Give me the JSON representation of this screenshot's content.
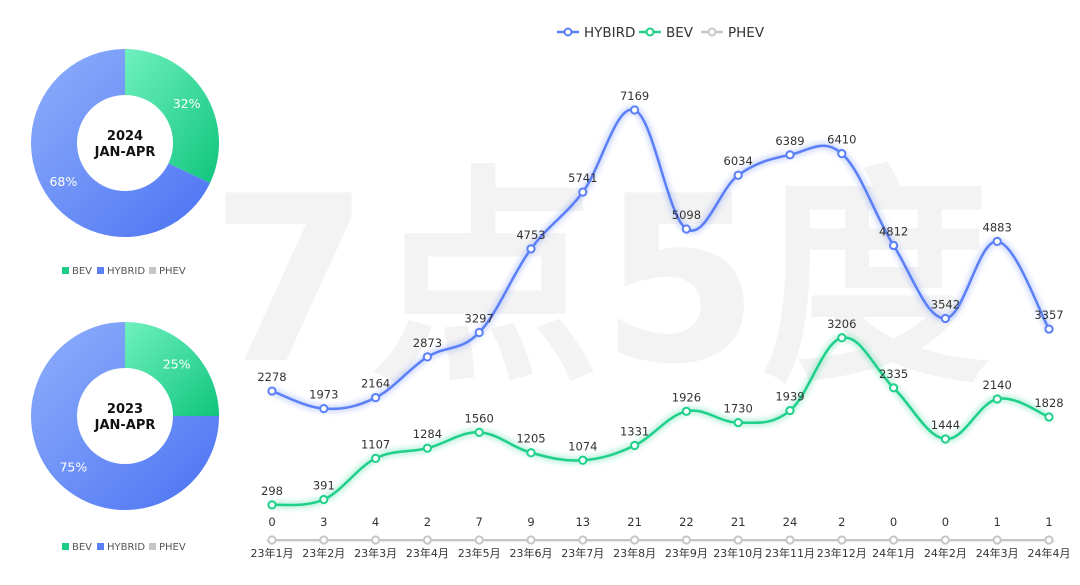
{
  "watermark": "7点5度",
  "chart_data": [
    {
      "type": "line",
      "categories": [
        "23年1月",
        "23年2月",
        "23年3月",
        "23年4月",
        "23年5月",
        "23年6月",
        "23年7月",
        "23年8月",
        "23年9月",
        "23年10月",
        "23年11月",
        "23年12月",
        "24年1月",
        "24年2月",
        "24年3月",
        "24年4月"
      ],
      "series": [
        {
          "name": "HYBIRD",
          "color": "#5b7ff6",
          "values": [
            2278,
            1973,
            2164,
            2873,
            3297,
            4753,
            5741,
            7169,
            5098,
            6034,
            6389,
            6410,
            4812,
            3542,
            4883,
            3357
          ]
        },
        {
          "name": "BEV",
          "color": "#1fd08a",
          "values": [
            298,
            391,
            1107,
            1284,
            1560,
            1205,
            1074,
            1331,
            1926,
            1730,
            1939,
            3206,
            2335,
            1444,
            2140,
            1828
          ]
        },
        {
          "name": "PHEV",
          "color": "#c6c6c6",
          "values": [
            0,
            3,
            4,
            2,
            7,
            9,
            13,
            21,
            22,
            21,
            24,
            2,
            0,
            0,
            1,
            1
          ]
        }
      ],
      "legend_position": "top-center",
      "grid": false
    },
    {
      "type": "pie",
      "center_title": [
        "2024",
        "JAN-APR"
      ],
      "slices": [
        {
          "name": "BEV",
          "value": 32,
          "label": "32%",
          "color": "#1ccb86"
        },
        {
          "name": "HYBRID",
          "value": 68,
          "label": "68%",
          "color": "#5b7ff6"
        },
        {
          "name": "PHEV",
          "value": 0,
          "label": "",
          "color": "#c6c6c6"
        }
      ],
      "legend": [
        "BEV",
        "HYBRID",
        "PHEV"
      ]
    },
    {
      "type": "pie",
      "center_title": [
        "2023",
        "JAN-APR"
      ],
      "slices": [
        {
          "name": "BEV",
          "value": 25,
          "label": "25%",
          "color": "#1ccb86"
        },
        {
          "name": "HYBRID",
          "value": 75,
          "label": "75%",
          "color": "#5b7ff6"
        },
        {
          "name": "PHEV",
          "value": 0,
          "label": "",
          "color": "#c6c6c6"
        }
      ],
      "legend": [
        "BEV",
        "HYBRID",
        "PHEV"
      ]
    }
  ]
}
